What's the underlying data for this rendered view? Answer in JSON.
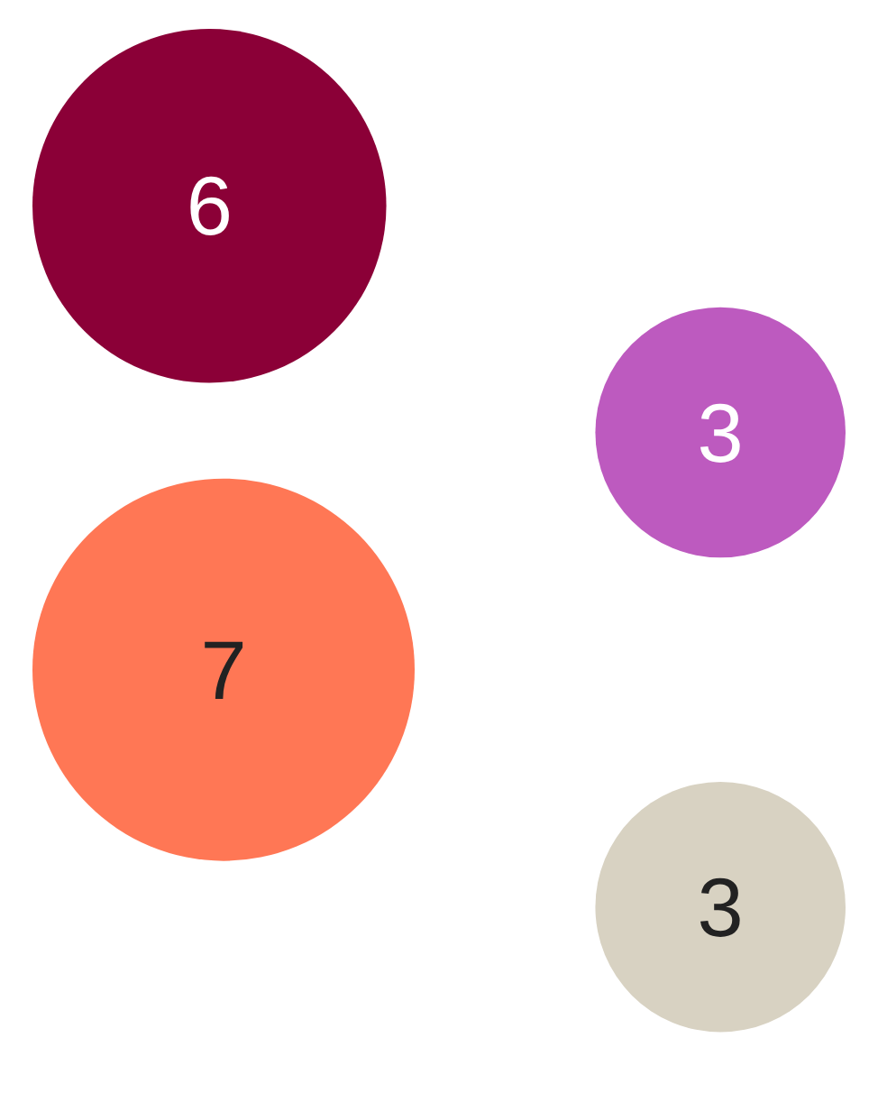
{
  "chart_data": {
    "type": "other",
    "categories": [
      null,
      null,
      null,
      null
    ],
    "values": [
      6,
      3,
      7,
      3
    ],
    "colors": [
      "#8b0037",
      "#bd5abf",
      "#ff7755",
      "#d8d2c2"
    ],
    "data_labels": true
  }
}
